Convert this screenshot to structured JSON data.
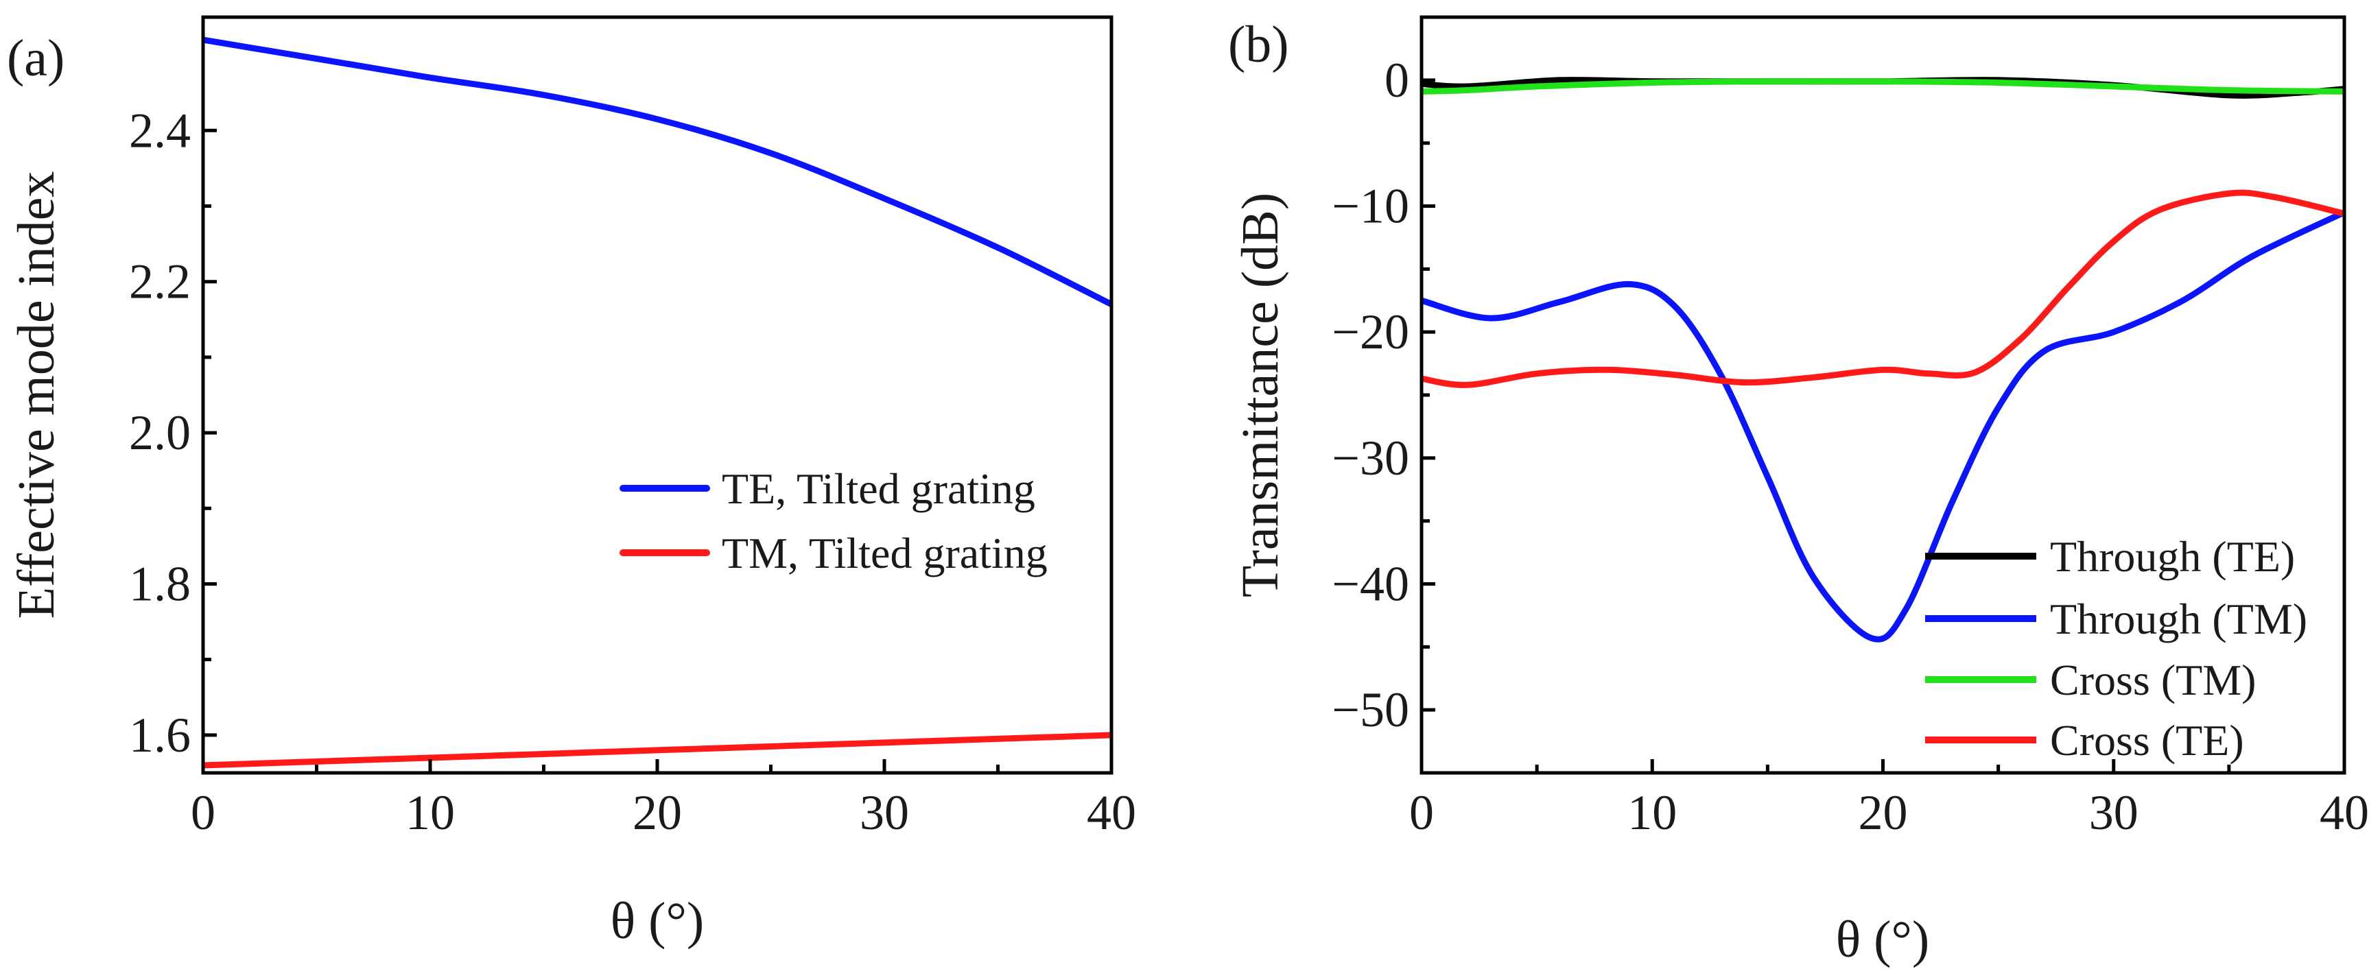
{
  "chart_data": [
    {
      "panel_label": "(a)",
      "type": "line",
      "xlabel": "θ (°)",
      "ylabel": "Effective mode index",
      "xlim": [
        0,
        40
      ],
      "ylim": [
        1.55,
        2.55
      ],
      "xticks": [
        0,
        10,
        20,
        30,
        40
      ],
      "xtick_labels": [
        "0",
        "10",
        "20",
        "30",
        "40"
      ],
      "yticks": [
        1.6,
        1.8,
        2.0,
        2.2,
        2.4
      ],
      "ytick_labels": [
        "1.6",
        "1.8",
        "2.0",
        "2.2",
        "2.4"
      ],
      "legend_position": "right",
      "series": [
        {
          "name": "TE, Tilted grating",
          "color": "#0a14ff",
          "x": [
            0,
            5,
            10,
            15,
            20,
            25,
            30,
            35,
            40
          ],
          "values": [
            2.52,
            2.495,
            2.47,
            2.447,
            2.415,
            2.37,
            2.31,
            2.245,
            2.17
          ]
        },
        {
          "name": "TM, Tilted grating",
          "color": "#ff1a1a",
          "x": [
            0,
            10,
            20,
            30,
            40
          ],
          "values": [
            1.56,
            1.57,
            1.58,
            1.59,
            1.6
          ]
        }
      ]
    },
    {
      "panel_label": "(b)",
      "type": "line",
      "xlabel": "θ (°)",
      "ylabel": "Transmittance (dB)",
      "xlim": [
        0,
        40
      ],
      "ylim": [
        -55,
        5
      ],
      "xticks": [
        0,
        10,
        20,
        30,
        40
      ],
      "xtick_labels": [
        "0",
        "10",
        "20",
        "30",
        "40"
      ],
      "yticks": [
        0,
        -10,
        -20,
        -30,
        -40,
        -50
      ],
      "ytick_labels": [
        "0",
        "−10",
        "−20",
        "−30",
        "−40",
        "−50"
      ],
      "legend_position": "bottom-right",
      "series": [
        {
          "name": "Through (TE)",
          "color": "#000000",
          "x": [
            0,
            2,
            6,
            10,
            15,
            20,
            25,
            30,
            35,
            38,
            40
          ],
          "values": [
            -0.3,
            -0.5,
            0.0,
            -0.1,
            -0.1,
            -0.1,
            0.0,
            -0.4,
            -1.2,
            -1.0,
            -0.7
          ]
        },
        {
          "name": "Through (TM)",
          "color": "#0a14ff",
          "x": [
            0,
            3,
            6,
            9,
            11,
            13,
            15,
            17,
            19.5,
            21,
            23,
            25,
            27,
            30,
            33,
            36,
            40
          ],
          "values": [
            -17.5,
            -18.9,
            -17.6,
            -16.2,
            -18.0,
            -23.5,
            -31.5,
            -39.5,
            -44.3,
            -42.0,
            -33.5,
            -26.0,
            -21.5,
            -20.0,
            -17.5,
            -14.0,
            -10.5
          ]
        },
        {
          "name": "Cross (TM)",
          "color": "#22e01a",
          "x": [
            0,
            2,
            5,
            10,
            15,
            20,
            25,
            30,
            35,
            40
          ],
          "values": [
            -0.9,
            -0.8,
            -0.5,
            -0.2,
            -0.1,
            -0.1,
            -0.2,
            -0.5,
            -0.8,
            -0.9
          ]
        },
        {
          "name": "Cross (TE)",
          "color": "#ff1a1a",
          "x": [
            0,
            2,
            5,
            8,
            11,
            14,
            17,
            20,
            22,
            24,
            26,
            28,
            30,
            32,
            35,
            37,
            40
          ],
          "values": [
            -23.7,
            -24.2,
            -23.3,
            -23.0,
            -23.4,
            -24.0,
            -23.6,
            -23.0,
            -23.3,
            -23.2,
            -20.5,
            -16.5,
            -12.8,
            -10.3,
            -9.0,
            -9.3,
            -10.6
          ]
        }
      ]
    }
  ]
}
